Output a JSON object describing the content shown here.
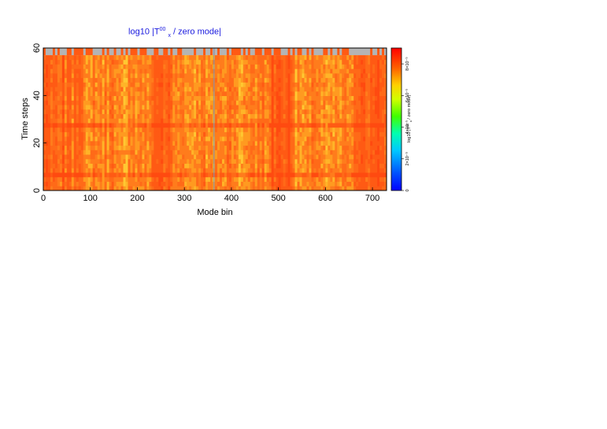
{
  "chart_data": {
    "type": "heatmap",
    "title": "log10 |T",
    "title_sup": "00",
    "title_sub": "x",
    "title_rest": "/ zero mode|",
    "xlabel": "Mode bin",
    "ylabel": "Time steps",
    "xlim": [
      0,
      730
    ],
    "ylim": [
      0,
      60
    ],
    "x_ticks": [
      "0",
      "100",
      "200",
      "300",
      "400",
      "500",
      "600",
      "700"
    ],
    "x_tick_values": [
      0,
      100,
      200,
      300,
      400,
      500,
      600,
      700
    ],
    "y_ticks": [
      "0",
      "20",
      "40",
      "60"
    ],
    "y_tick_values": [
      0,
      20,
      40,
      60
    ],
    "colorbar": {
      "label": "log10 |T",
      "label_sup": "00",
      "label_sub": "x",
      "label_rest": "/ zero mode|",
      "tick_labels": [
        "0",
        "2×10⁻⁵",
        "4×10⁻⁵",
        "6×10⁻⁵",
        "8×10⁻⁵"
      ],
      "tick_values": [
        0,
        0.2,
        0.4,
        0.6,
        0.8
      ],
      "colors": [
        "#0000ff",
        "#00a0ff",
        "#00ffff",
        "#00ff66",
        "#66ff00",
        "#ffff00",
        "#ffaa00",
        "#ff5500",
        "#ff0000"
      ]
    },
    "data_description_values": {
      "dominant_value_fraction": 0.88,
      "high_value_band_fraction": 0.8,
      "missing_top_row_color": "#b4b4b4",
      "vertical_gray_line_x": 363
    },
    "grid": false,
    "colors": {
      "title": "#1a1adf",
      "base_cell": "#ff5a14",
      "light_cell": "#ff9a20",
      "yellow_cell": "#ffc832",
      "missing": "#b4b4b4"
    }
  }
}
